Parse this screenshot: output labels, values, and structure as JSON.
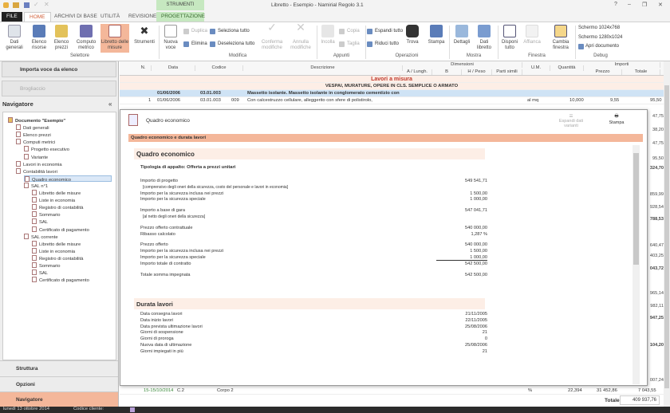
{
  "window": {
    "title": "Libretto - Esempio - Namirial Regolo 3.1",
    "contextual_group": "STRUMENTI",
    "help": "?",
    "minimize": "–",
    "restore": "❐",
    "close": "✕"
  },
  "tabs": [
    "FILE",
    "HOME",
    "ARCHIVI DI BASE",
    "UTILITÀ",
    "REVISIONE",
    "PROGETTAZIONE"
  ],
  "ribbon": {
    "selettore": {
      "label": "Selettore",
      "items": [
        "Dati generali",
        "Elenco risorse",
        "Elenco prezzi",
        "Computo metrico",
        "Libretto delle misure",
        "Strumenti"
      ]
    },
    "modifica": {
      "label": "Modifica",
      "nuova_voce": "Nuova voce",
      "duplica": "Duplica",
      "elimina": "Elimina",
      "seleziona_tutto": "Seleziona tutto",
      "deseleziona_tutto": "Deseleziona tutto",
      "conferma": "Conferma modifiche",
      "annulla": "Annulla modifiche"
    },
    "appunti": {
      "label": "Appunti",
      "incolla": "Incolla",
      "copia": "Copia",
      "taglia": "Taglia"
    },
    "operazioni": {
      "label": "Operazioni",
      "espandi": "Espandi tutto",
      "riduci": "Riduci tutto",
      "trova": "Trova",
      "stampa": "Stampa"
    },
    "mostra": {
      "label": "Mostra",
      "dettagli": "Dettagli",
      "dati_libretto": "Dati libretto"
    },
    "finestra": {
      "label": "Finestra",
      "disponi": "Disponi tutto",
      "affianca": "Affianca",
      "cambia": "Cambia finestra"
    },
    "debug": {
      "label": "Debug",
      "s1": "Schermo 1024x768",
      "s2": "Schermo 1280x1024",
      "apri": "Apri documento"
    }
  },
  "left": {
    "importa": "Importa voce da elenco",
    "brogliaccio": "Brogliaccio",
    "navigatore_title": "Navigatore",
    "collapse": "«",
    "tree": [
      {
        "label": "Documento \"Esempio\"",
        "level": 0,
        "bold": true
      },
      {
        "label": "Dati generali",
        "level": 1
      },
      {
        "label": "Elenco prezzi",
        "level": 1
      },
      {
        "label": "Computi metrici",
        "level": 1
      },
      {
        "label": "Progetto esecutivo",
        "level": 2
      },
      {
        "label": "Variante",
        "level": 2
      },
      {
        "label": "Lavori in economia",
        "level": 1
      },
      {
        "label": "Contabilità lavori",
        "level": 1
      },
      {
        "label": "Quadro economico",
        "level": 2,
        "selected": true
      },
      {
        "label": "SAL n°1",
        "level": 2
      },
      {
        "label": "Libretto delle misure",
        "level": 3
      },
      {
        "label": "Liste in economia",
        "level": 3
      },
      {
        "label": "Registro di contabilità",
        "level": 3
      },
      {
        "label": "Sommario",
        "level": 3
      },
      {
        "label": "SAL",
        "level": 3
      },
      {
        "label": "Certificato di pagamento",
        "level": 3
      },
      {
        "label": "SAL corrente",
        "level": 2
      },
      {
        "label": "Libretto delle misure",
        "level": 3
      },
      {
        "label": "Liste in economia",
        "level": 3
      },
      {
        "label": "Registro di contabilità",
        "level": 3
      },
      {
        "label": "Sommario",
        "level": 3
      },
      {
        "label": "SAL",
        "level": 3
      },
      {
        "label": "Certificato di pagamento",
        "level": 3
      }
    ],
    "panes": [
      "Struttura",
      "Opzioni",
      "Navigatore"
    ]
  },
  "grid": {
    "headers": {
      "n": "N.",
      "data": "Data",
      "codice": "Codice",
      "descrizione": "Descrizione",
      "dimensioni": "Dimensioni",
      "a": "A / Lungh.",
      "b": "B",
      "h": "H / Peso",
      "parti": "Parti simili",
      "um": "U.M.",
      "quantita": "Quantità",
      "importi": "Importi",
      "prezzo": "Prezzo",
      "totale": "Totale"
    },
    "section": "Lavori a misura",
    "category": "VESPAI, MURATURE, OPERE IN CLS. SEMPLICE O ARMATO",
    "rows": [
      {
        "data": "01/06/2006",
        "codice": "03.01.003",
        "desc": "Massetto isolante. Massetto isolante in conglomerato cementizio con"
      },
      {
        "n": "1",
        "data": "01/06/2006",
        "codice": "03.01.003",
        "sub": "009",
        "desc": "Con calcestruzzo cellulare, alleggerito con sfere di polistirolo,",
        "um": "al mq",
        "q": "10,000",
        "prezzo": "9,55",
        "totale": "95,50"
      }
    ],
    "right_totals": [
      "47,75",
      "38,20",
      "47,75",
      "95,50",
      "324,70",
      "859,99",
      "928,54",
      "788,53",
      "640,47",
      "403,25",
      "043,72",
      "965,14",
      "982,11",
      "947,25",
      "104,20",
      "007,24"
    ],
    "bottom_row": {
      "data": "15-15/10/2014",
      "codice": "C.2",
      "desc": "Corpo 2",
      "um": "%",
      "q": "22,394",
      "prezzo": "31 452,86",
      "totale": "7 043,55"
    },
    "totale_label": "Totale",
    "totale_value": "409 937,76"
  },
  "dialog": {
    "title": "Quadro economico",
    "espandi": "Espandi dati varianti",
    "stampa": "Stampa",
    "bar": "Quadro economico e durata lavori",
    "qe_title": "Quadro economico",
    "tipologia": "Tipologia di appalto: Offerta a prezzi unitari",
    "lines": [
      {
        "l": "Importo di progetto",
        "v": "549 541,71"
      },
      {
        "l": "[comprensivo degli oneri della sicurezza, costo del personale e lavori in economia]",
        "v": "",
        "note": true
      },
      {
        "l": "Importo per la sicurezza inclusa nei prezzi",
        "v": "1 500,00"
      },
      {
        "l": "Importo per la sicurezza speciale",
        "v": "1 000,00"
      },
      {
        "l": "Importo a base di gara",
        "v": "547 041,71",
        "gap": true
      },
      {
        "l": "[al netto degli oneri della sicurezza]",
        "v": "",
        "note": true
      },
      {
        "l": "Prezzo offerto contrattuale",
        "v": "540 000,00",
        "gap": true
      },
      {
        "l": "Ribasso calcolato",
        "v": "1,287 %"
      },
      {
        "l": "Prezzo offerto",
        "v": "540 000,00",
        "gap": true
      },
      {
        "l": "Importo per la sicurezza inclusa nei prezzi",
        "v": "1 500,00"
      },
      {
        "l": "Importo per la sicurezza speciale",
        "v": "1 000,00",
        "underline": true
      },
      {
        "l": "Importo totale di contratto",
        "v": "542 500,00"
      },
      {
        "l": "Totale somma impegnata",
        "v": "542 500,00",
        "gap": true
      }
    ],
    "durata_title": "Durata lavori",
    "durata": [
      {
        "l": "Data consegna lavori",
        "v": "21/11/2005"
      },
      {
        "l": "Data inizio lavori",
        "v": "22/11/2005"
      },
      {
        "l": "Data prevista ultimazione lavori",
        "v": "25/08/2006"
      },
      {
        "l": "Giorni di sospensione",
        "v": "21"
      },
      {
        "l": "Giorni di proroga",
        "v": "0"
      },
      {
        "l": "Nuova data di ultimazione",
        "v": "25/08/2006"
      },
      {
        "l": "Giorni impiegati in più",
        "v": "21"
      }
    ]
  },
  "status": {
    "date": "lunedì 13 ottobre 2014",
    "codice": "Codice cliente:"
  },
  "colors": {
    "accent": "#f4b79a",
    "active_tab": "#d2603a",
    "contextual": "#c6e8c0",
    "section_bg": "#fdeee6",
    "selected_row": "#cfe3f5"
  }
}
